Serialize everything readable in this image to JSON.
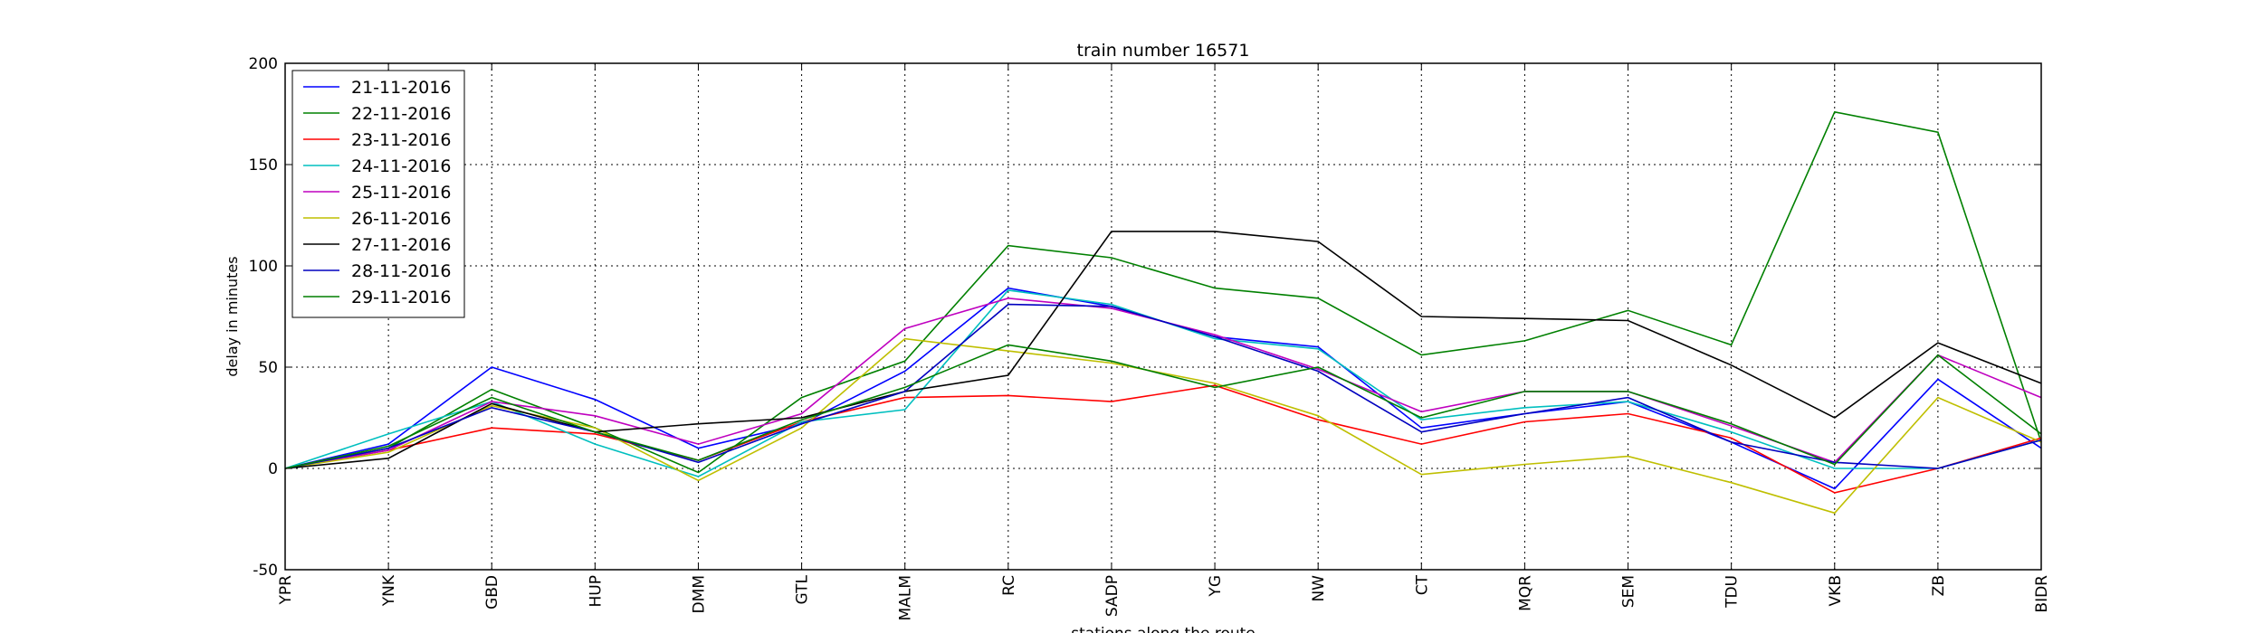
{
  "chart_data": {
    "type": "line",
    "title": "train number 16571",
    "xlabel": "stations along the route",
    "ylabel": "delay in minutes",
    "ylim": [
      -50,
      200
    ],
    "yticks": [
      -50,
      0,
      50,
      100,
      150,
      200
    ],
    "grid": true,
    "legend_position": "top-left",
    "categories": [
      "YPR",
      "YNK",
      "GBD",
      "HUP",
      "DMM",
      "GTL",
      "MALM",
      "RC",
      "SADP",
      "YG",
      "NW",
      "CT",
      "MQR",
      "SEM",
      "TDU",
      "VKB",
      "ZB",
      "BIDR"
    ],
    "series": [
      {
        "name": "21-11-2016",
        "color": "#0000ff",
        "values": [
          0,
          12,
          50,
          34,
          10,
          22,
          48,
          89,
          80,
          65,
          60,
          20,
          27,
          33,
          13,
          -10,
          44,
          10
        ]
      },
      {
        "name": "22-11-2016",
        "color": "#008000",
        "values": [
          0,
          10,
          39,
          20,
          -2,
          35,
          53,
          110,
          104,
          89,
          84,
          56,
          63,
          78,
          61,
          176,
          166,
          13
        ]
      },
      {
        "name": "23-11-2016",
        "color": "#ff0000",
        "values": [
          0,
          9,
          20,
          17,
          4,
          23,
          35,
          36,
          33,
          41,
          24,
          12,
          23,
          27,
          15,
          -12,
          0,
          15
        ]
      },
      {
        "name": "24-11-2016",
        "color": "#00bfbf",
        "values": [
          0,
          17,
          33,
          12,
          -4,
          23,
          29,
          88,
          81,
          64,
          59,
          24,
          30,
          33,
          18,
          0,
          0,
          14
        ]
      },
      {
        "name": "25-11-2016",
        "color": "#bf00bf",
        "values": [
          0,
          9,
          33,
          26,
          12,
          27,
          69,
          84,
          79,
          66,
          49,
          28,
          38,
          38,
          21,
          3,
          56,
          35
        ]
      },
      {
        "name": "26-11-2016",
        "color": "#bfbf00",
        "values": [
          0,
          8,
          31,
          20,
          -6,
          20,
          64,
          58,
          52,
          42,
          26,
          -3,
          2,
          6,
          -7,
          -22,
          35,
          13
        ]
      },
      {
        "name": "27-11-2016",
        "color": "#000000",
        "values": [
          0,
          5,
          32,
          18,
          22,
          25,
          38,
          46,
          117,
          117,
          112,
          75,
          74,
          73,
          51,
          25,
          62,
          42
        ]
      },
      {
        "name": "28-11-2016",
        "color": "#0000bf",
        "values": [
          0,
          10,
          30,
          18,
          3,
          22,
          38,
          81,
          80,
          65,
          48,
          18,
          27,
          35,
          13,
          3,
          0,
          14
        ]
      },
      {
        "name": "29-11-2016",
        "color": "#007f00",
        "values": [
          0,
          11,
          35,
          18,
          4,
          24,
          40,
          61,
          53,
          40,
          50,
          25,
          38,
          38,
          22,
          2,
          56,
          17
        ]
      }
    ]
  }
}
